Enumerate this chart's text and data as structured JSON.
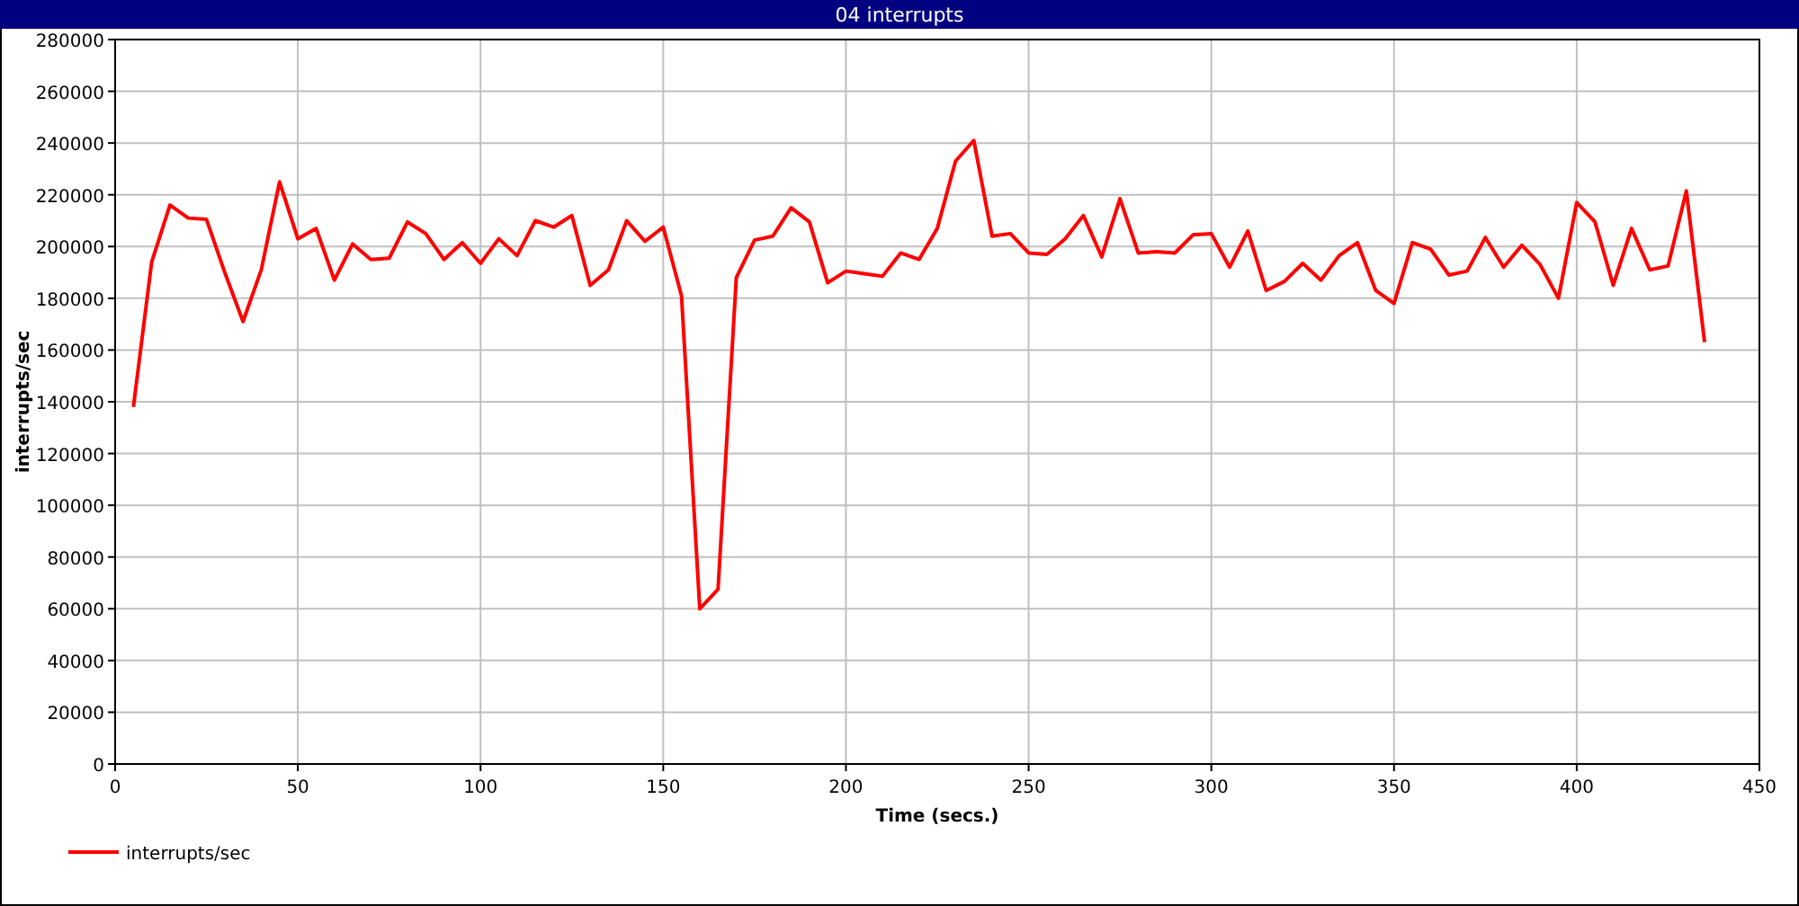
{
  "chart_data": {
    "type": "line",
    "title": "04 interrupts",
    "xlabel": "Time (secs.)",
    "ylabel": "interrupts/sec",
    "x": [
      5,
      10,
      15,
      20,
      25,
      30,
      35,
      40,
      45,
      50,
      55,
      60,
      65,
      70,
      75,
      80,
      85,
      90,
      95,
      100,
      105,
      110,
      115,
      120,
      125,
      130,
      135,
      140,
      145,
      150,
      155,
      160,
      165,
      170,
      175,
      180,
      185,
      190,
      195,
      200,
      205,
      210,
      215,
      220,
      225,
      230,
      235,
      240,
      245,
      250,
      255,
      260,
      265,
      270,
      275,
      280,
      285,
      290,
      295,
      300,
      305,
      310,
      315,
      320,
      325,
      330,
      335,
      340,
      345,
      350,
      355,
      360,
      365,
      370,
      375,
      380,
      385,
      390,
      395,
      400,
      405,
      410,
      415,
      420,
      425,
      430,
      435
    ],
    "series": [
      {
        "name": "interrupts/sec",
        "color": "#ff0000",
        "values": [
          138000,
          194000,
          216000,
          211000,
          210500,
          190000,
          171000,
          191000,
          225000,
          203000,
          207000,
          187000,
          201000,
          195000,
          195500,
          209500,
          205000,
          195000,
          201500,
          193500,
          203000,
          196500,
          210000,
          207500,
          212000,
          185000,
          191000,
          210000,
          202000,
          207500,
          181000,
          60000,
          67500,
          188000,
          202500,
          204000,
          215000,
          209500,
          186000,
          190500,
          189500,
          188500,
          197500,
          195000,
          207000,
          233000,
          241000,
          204000,
          205000,
          197500,
          197000,
          203000,
          212000,
          196000,
          218500,
          197500,
          198000,
          197500,
          204500,
          205000,
          192000,
          206000,
          183000,
          186500,
          193500,
          187000,
          196500,
          201500,
          183000,
          178000,
          201500,
          199000,
          189000,
          190500,
          203500,
          192000,
          200500,
          193000,
          180000,
          217000,
          209500,
          185000,
          207000,
          191000,
          192500,
          221500,
          163000
        ]
      }
    ],
    "xlim": [
      0,
      450
    ],
    "xticks": [
      0,
      50,
      100,
      150,
      200,
      250,
      300,
      350,
      400,
      450
    ],
    "ylim": [
      0,
      280000
    ],
    "yticks": [
      0,
      20000,
      40000,
      60000,
      80000,
      100000,
      120000,
      140000,
      160000,
      180000,
      200000,
      220000,
      240000,
      260000,
      280000
    ],
    "grid": true,
    "legend": "bottom left",
    "marker": "none",
    "line_style": "solid"
  }
}
